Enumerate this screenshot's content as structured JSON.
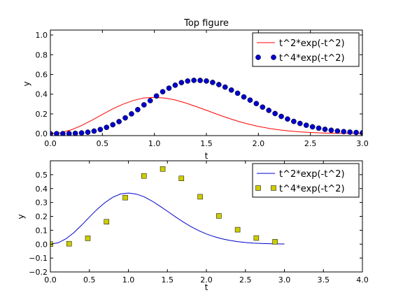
{
  "chart_data": [
    {
      "type": "line",
      "title": "Top figure",
      "xlabel": "t",
      "ylabel": "y",
      "xlim": [
        0,
        3
      ],
      "ylim": [
        -0.02,
        1.05
      ],
      "xticks": [
        "0.0",
        "0.5",
        "1.0",
        "1.5",
        "2.0",
        "2.5",
        "3.0"
      ],
      "yticks": [
        "0.0",
        "0.2",
        "0.4",
        "0.6",
        "0.8",
        "1.0"
      ],
      "xtick_values": [
        0,
        0.5,
        1,
        1.5,
        2,
        2.5,
        3
      ],
      "ytick_values": [
        0,
        0.2,
        0.4,
        0.6,
        0.8,
        1.0
      ],
      "grid": false,
      "legend_position": "top-right",
      "series": [
        {
          "name": "t^2*exp(-t^2)",
          "style": "line",
          "color": "#ff0000",
          "x": [
            0.0,
            0.1,
            0.2,
            0.3,
            0.4,
            0.5,
            0.6,
            0.7,
            0.8,
            0.9,
            1.0,
            1.1,
            1.2,
            1.3,
            1.4,
            1.5,
            1.6,
            1.7,
            1.8,
            1.9,
            2.0,
            2.1,
            2.2,
            2.3,
            2.4,
            2.5,
            2.6,
            2.7,
            2.8,
            2.9,
            3.0
          ],
          "y": [
            0.0,
            0.0099,
            0.0384,
            0.0822,
            0.1363,
            0.1947,
            0.2512,
            0.2994,
            0.3375,
            0.3617,
            0.3679,
            0.3606,
            0.3411,
            0.3113,
            0.2752,
            0.2371,
            0.1978,
            0.1608,
            0.127,
            0.0978,
            0.0733,
            0.0539,
            0.0385,
            0.027,
            0.0182,
            0.012,
            0.0078,
            0.005,
            0.0031,
            0.0019,
            0.0011
          ]
        },
        {
          "name": "t^4*exp(-t^2)",
          "style": "markers-circle",
          "color": "#0000cc",
          "x": [
            0.0,
            0.06,
            0.12,
            0.18,
            0.24,
            0.3,
            0.36,
            0.42,
            0.48,
            0.54,
            0.6,
            0.66,
            0.72,
            0.78,
            0.84,
            0.9,
            0.96,
            1.02,
            1.08,
            1.14,
            1.2,
            1.26,
            1.32,
            1.38,
            1.44,
            1.5,
            1.56,
            1.62,
            1.68,
            1.74,
            1.8,
            1.86,
            1.92,
            1.98,
            2.04,
            2.1,
            2.16,
            2.22,
            2.28,
            2.34,
            2.4,
            2.46,
            2.52,
            2.58,
            2.64,
            2.7,
            2.76,
            2.82,
            2.88,
            2.94,
            3.0
          ],
          "y": [
            0.0,
            0.0,
            0.0002,
            0.001,
            0.0031,
            0.0074,
            0.0148,
            0.026,
            0.0422,
            0.0636,
            0.0905,
            0.1222,
            0.1599,
            0.2005,
            0.2435,
            0.292,
            0.3346,
            0.3817,
            0.4252,
            0.4611,
            0.491,
            0.5178,
            0.5335,
            0.5403,
            0.5396,
            0.5337,
            0.5193,
            0.4973,
            0.4719,
            0.442,
            0.4096,
            0.3722,
            0.3399,
            0.3052,
            0.269,
            0.236,
            0.204,
            0.1748,
            0.1483,
            0.1242,
            0.1036,
            0.0853,
            0.0693,
            0.0556,
            0.044,
            0.0346,
            0.0269,
            0.0209,
            0.0158,
            0.0118,
            0.0089
          ]
        }
      ]
    },
    {
      "type": "line",
      "title": "",
      "xlabel": "t",
      "ylabel": "y",
      "xlim": [
        0,
        4
      ],
      "ylim": [
        -0.2,
        0.6
      ],
      "xticks": [
        "0.0",
        "0.5",
        "1.0",
        "1.5",
        "2.0",
        "2.5",
        "3.0",
        "3.5",
        "4.0"
      ],
      "yticks": [
        "−0.2",
        "−0.1",
        "0.0",
        "0.1",
        "0.2",
        "0.3",
        "0.4",
        "0.5"
      ],
      "xtick_values": [
        0,
        0.5,
        1,
        1.5,
        2,
        2.5,
        3,
        3.5,
        4
      ],
      "ytick_values": [
        -0.2,
        -0.1,
        0,
        0.1,
        0.2,
        0.3,
        0.4,
        0.5
      ],
      "grid": false,
      "legend_position": "top-right",
      "series": [
        {
          "name": "t^2*exp(-t^2)",
          "style": "line",
          "color": "#0000cc",
          "x": [
            0.0,
            0.1,
            0.2,
            0.3,
            0.4,
            0.5,
            0.6,
            0.7,
            0.8,
            0.9,
            1.0,
            1.1,
            1.2,
            1.3,
            1.4,
            1.5,
            1.6,
            1.7,
            1.8,
            1.9,
            2.0,
            2.1,
            2.2,
            2.3,
            2.4,
            2.5,
            2.6,
            2.7,
            2.8,
            2.9,
            3.0
          ],
          "y": [
            0.0,
            0.0099,
            0.0384,
            0.0822,
            0.1363,
            0.1947,
            0.2512,
            0.2994,
            0.3375,
            0.3617,
            0.3679,
            0.3606,
            0.3411,
            0.3113,
            0.2752,
            0.2371,
            0.1978,
            0.1608,
            0.127,
            0.0978,
            0.0733,
            0.0539,
            0.0385,
            0.027,
            0.0182,
            0.012,
            0.0078,
            0.005,
            0.0031,
            0.0019,
            0.0011
          ]
        },
        {
          "name": "t^4*exp(-t^2)",
          "style": "markers-square",
          "color": "#cccc00",
          "x": [
            0.0,
            0.24,
            0.48,
            0.72,
            0.96,
            1.2,
            1.44,
            1.68,
            1.92,
            2.16,
            2.4,
            2.64,
            2.88
          ],
          "y": [
            0.0,
            0.003,
            0.042,
            0.161,
            0.335,
            0.491,
            0.541,
            0.473,
            0.341,
            0.203,
            0.104,
            0.044,
            0.017
          ]
        }
      ]
    }
  ]
}
